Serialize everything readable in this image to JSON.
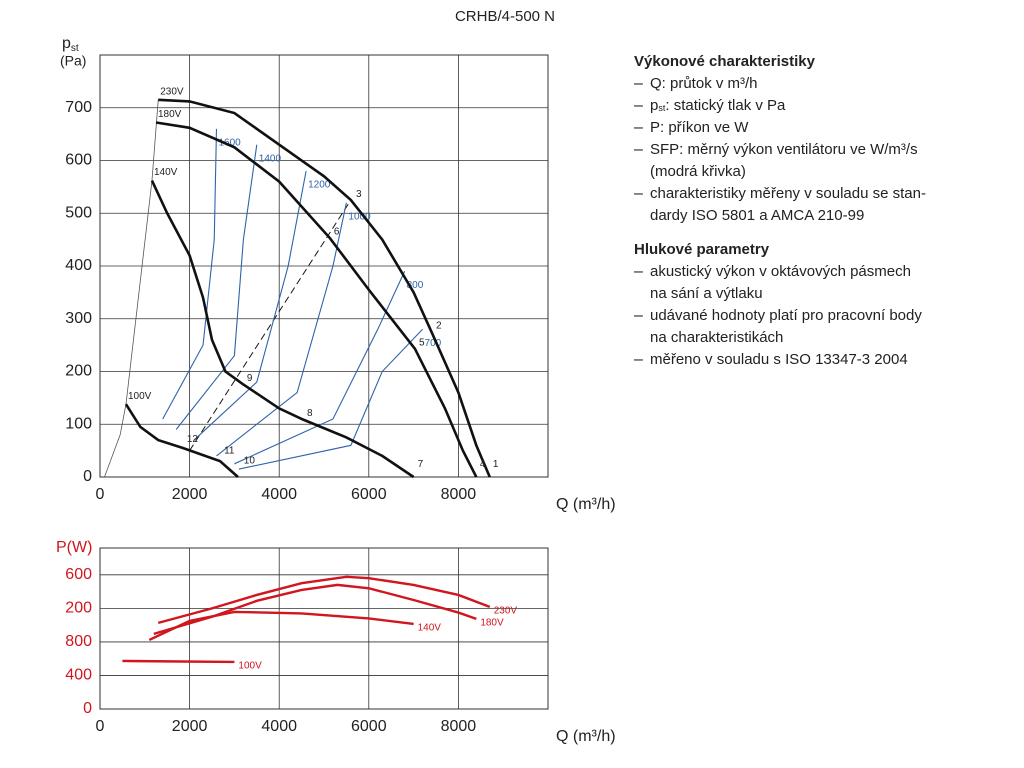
{
  "chart_data": [
    {
      "type": "line",
      "title": "CRHB/4-500 N",
      "y_label": {
        "symbol": "p",
        "sub": "st",
        "unit": "(Pa)"
      },
      "x_label": "Q (m³/h)",
      "xlim": [
        0,
        10000
      ],
      "ylim": [
        0,
        800
      ],
      "xticks": [
        0,
        2000,
        4000,
        6000,
        8000
      ],
      "yticks": [
        0,
        100,
        200,
        300,
        400,
        500,
        600,
        700
      ],
      "grid": true,
      "series": [
        {
          "name": "230V",
          "color": "#111111",
          "x": [
            1300,
            2000,
            3000,
            4000,
            5000,
            5600,
            6300,
            7000,
            7400,
            8000,
            8400,
            8700
          ],
          "values": [
            715,
            712,
            690,
            630,
            570,
            525,
            450,
            350,
            275,
            160,
            60,
            0
          ]
        },
        {
          "name": "180V",
          "color": "#111111",
          "x": [
            1250,
            2000,
            3000,
            4000,
            5130,
            6000,
            7030,
            7700,
            8100,
            8400
          ],
          "values": [
            672,
            662,
            625,
            560,
            453,
            355,
            243,
            130,
            50,
            0
          ]
        },
        {
          "name": "140V",
          "color": "#111111",
          "x": [
            1160,
            1500,
            2000,
            2300,
            2500,
            2800,
            3190,
            4000,
            4530,
            5500,
            6300,
            7000
          ],
          "values": [
            562,
            500,
            420,
            340,
            260,
            200,
            176,
            130,
            109,
            75,
            40,
            0
          ]
        },
        {
          "name": "100V",
          "color": "#111111",
          "x": [
            580,
            900,
            1300,
            1850,
            2680,
            3080
          ],
          "values": [
            138,
            95,
            70,
            55,
            30,
            0
          ]
        }
      ],
      "boundary": {
        "color": "#555555",
        "x": [
          100,
          450,
          580,
          1160,
          1300
        ],
        "values": [
          0,
          80,
          138,
          562,
          715
        ]
      },
      "system_curve": {
        "color": "#111111",
        "x": [
          2000,
          5600
        ],
        "values": [
          50,
          525
        ]
      },
      "sfp_curves": [
        {
          "name": "1600",
          "color": "#2f64a8",
          "x": [
            1400,
            2300,
            2550,
            2600
          ],
          "values": [
            110,
            250,
            450,
            660
          ]
        },
        {
          "name": "1400",
          "color": "#2f64a8",
          "x": [
            1700,
            3000,
            3200,
            3500
          ],
          "values": [
            90,
            230,
            450,
            630
          ]
        },
        {
          "name": "1200",
          "color": "#2f64a8",
          "x": [
            2100,
            3500,
            4200,
            4600
          ],
          "values": [
            70,
            180,
            400,
            580
          ]
        },
        {
          "name": "1000",
          "color": "#2f64a8",
          "x": [
            2600,
            4400,
            5200,
            5500
          ],
          "values": [
            40,
            160,
            400,
            520
          ]
        },
        {
          "name": "800",
          "color": "#2f64a8",
          "x": [
            3000,
            5200,
            6200,
            6800
          ],
          "values": [
            25,
            110,
            280,
            390
          ]
        },
        {
          "name": "700",
          "color": "#2f64a8",
          "x": [
            3100,
            5600,
            6300,
            7200
          ],
          "values": [
            15,
            60,
            200,
            280
          ]
        }
      ],
      "points": [
        {
          "label": "1",
          "x": 8680,
          "y": 13
        },
        {
          "label": "2",
          "x": 7410,
          "y": 275
        },
        {
          "label": "3",
          "x": 5625,
          "y": 524
        },
        {
          "label": "4",
          "x": 8390,
          "y": 13
        },
        {
          "label": "5",
          "x": 7030,
          "y": 243
        },
        {
          "label": "6",
          "x": 5130,
          "y": 453
        },
        {
          "label": "7",
          "x": 7000,
          "y": 13
        },
        {
          "label": "8",
          "x": 4530,
          "y": 109
        },
        {
          "label": "9",
          "x": 3190,
          "y": 176
        },
        {
          "label": "10",
          "x": 3120,
          "y": 19
        },
        {
          "label": "11",
          "x": 2680,
          "y": 38
        },
        {
          "label": "12",
          "x": 1850,
          "y": 60
        }
      ]
    },
    {
      "type": "line",
      "y_label": "P(W)",
      "x_label": "Q (m³/h)",
      "axis_color": "#d0161e",
      "xlim": [
        0,
        10000
      ],
      "ylim": [
        0,
        1920
      ],
      "xticks": [
        0,
        2000,
        4000,
        6000,
        8000
      ],
      "yticks": [
        0,
        400,
        800,
        {
          "value": 1200,
          "label": "200"
        },
        {
          "value": 1600,
          "label": "600"
        }
      ],
      "grid": true,
      "series": [
        {
          "name": "230V",
          "color": "#d0161e",
          "x": [
            1300,
            2500,
            3500,
            4500,
            5500,
            6000,
            7000,
            8000,
            8700
          ],
          "values": [
            1027,
            1200,
            1360,
            1500,
            1576,
            1560,
            1480,
            1360,
            1218
          ]
        },
        {
          "name": "180V",
          "color": "#d0161e",
          "x": [
            1200,
            2500,
            3500,
            4500,
            5300,
            6000,
            7000,
            8000,
            8400
          ],
          "values": [
            896,
            1100,
            1290,
            1420,
            1480,
            1440,
            1300,
            1150,
            1075
          ]
        },
        {
          "name": "140V",
          "color": "#d0161e",
          "x": [
            1100,
            2000,
            3000,
            4500,
            6000,
            7000
          ],
          "values": [
            824,
            1050,
            1158,
            1140,
            1080,
            1015
          ]
        },
        {
          "name": "100V",
          "color": "#d0161e",
          "x": [
            500,
            1500,
            3000
          ],
          "values": [
            573,
            568,
            561
          ]
        }
      ]
    }
  ],
  "legend_text": {
    "sections": [
      {
        "heading": "Výkonové charakteristiky",
        "items": [
          "Q: průtok v m³/h",
          {
            "sym": "p",
            "sub": "st",
            "text": ": statický tlak v Pa"
          },
          "P: příkon ve W",
          "SFP: měrný výkon ventilátoru ve W/m³/s",
          "(modrá křivka)",
          "charakteristiky měřeny v souladu se stan-",
          "dardy ISO 5801 a AMCA 210-99"
        ]
      },
      {
        "heading": "Hlukové parametry",
        "items": [
          "akustický výkon v oktávových pásmech",
          "na sání a výtlaku",
          "udávané hodnoty platí pro pracovní body",
          "na charakteristikách",
          "měřeno v souladu s ISO 13347-3 2004"
        ]
      }
    ]
  }
}
